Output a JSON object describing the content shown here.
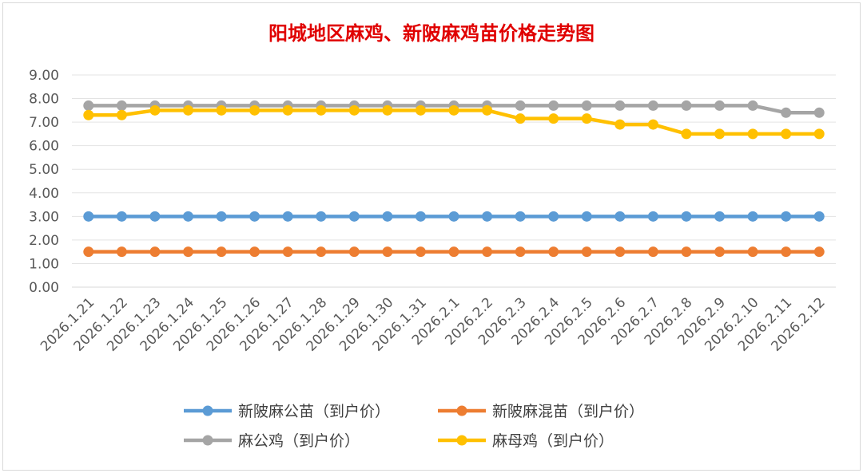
{
  "chart_data": {
    "type": "line",
    "title": "阳城地区麻鸡、新陂麻鸡苗价格走势图",
    "xlabel": "",
    "ylabel": "",
    "ylim": [
      0,
      9
    ],
    "yticks": [
      "0.00",
      "1.00",
      "2.00",
      "3.00",
      "4.00",
      "5.00",
      "6.00",
      "7.00",
      "8.00",
      "9.00"
    ],
    "grid": true,
    "legend_position": "bottom",
    "categories": [
      "2026.1.21",
      "2026.1.22",
      "2026.1.23",
      "2026.1.24",
      "2026.1.25",
      "2026.1.26",
      "2026.1.27",
      "2026.1.28",
      "2026.1.29",
      "2026.1.30",
      "2026.1.31",
      "2026.2.1",
      "2026.2.2",
      "2026.2.3",
      "2026.2.4",
      "2026.2.5",
      "2026.2.6",
      "2026.2.7",
      "2026.2.8",
      "2026.2.9",
      "2026.2.10",
      "2026.2.11",
      "2026.2.12"
    ],
    "series": [
      {
        "name": "新陂麻公苗（到户价）",
        "color": "#5b9bd5",
        "values": [
          3.0,
          3.0,
          3.0,
          3.0,
          3.0,
          3.0,
          3.0,
          3.0,
          3.0,
          3.0,
          3.0,
          3.0,
          3.0,
          3.0,
          3.0,
          3.0,
          3.0,
          3.0,
          3.0,
          3.0,
          3.0,
          3.0,
          3.0
        ]
      },
      {
        "name": "新陂麻混苗（到户价）",
        "color": "#ed7d31",
        "values": [
          1.5,
          1.5,
          1.5,
          1.5,
          1.5,
          1.5,
          1.5,
          1.5,
          1.5,
          1.5,
          1.5,
          1.5,
          1.5,
          1.5,
          1.5,
          1.5,
          1.5,
          1.5,
          1.5,
          1.5,
          1.5,
          1.5,
          1.5
        ]
      },
      {
        "name": "麻公鸡（到户价）",
        "color": "#a5a5a5",
        "values": [
          7.7,
          7.7,
          7.7,
          7.7,
          7.7,
          7.7,
          7.7,
          7.7,
          7.7,
          7.7,
          7.7,
          7.7,
          7.7,
          7.7,
          7.7,
          7.7,
          7.7,
          7.7,
          7.7,
          7.7,
          7.7,
          7.4,
          7.4
        ]
      },
      {
        "name": "麻母鸡（到户价）",
        "color": "#ffc000",
        "values": [
          7.3,
          7.3,
          7.5,
          7.5,
          7.5,
          7.5,
          7.5,
          7.5,
          7.5,
          7.5,
          7.5,
          7.5,
          7.5,
          7.15,
          7.15,
          7.15,
          6.9,
          6.9,
          6.5,
          6.5,
          6.5,
          6.5,
          6.5
        ]
      }
    ]
  }
}
